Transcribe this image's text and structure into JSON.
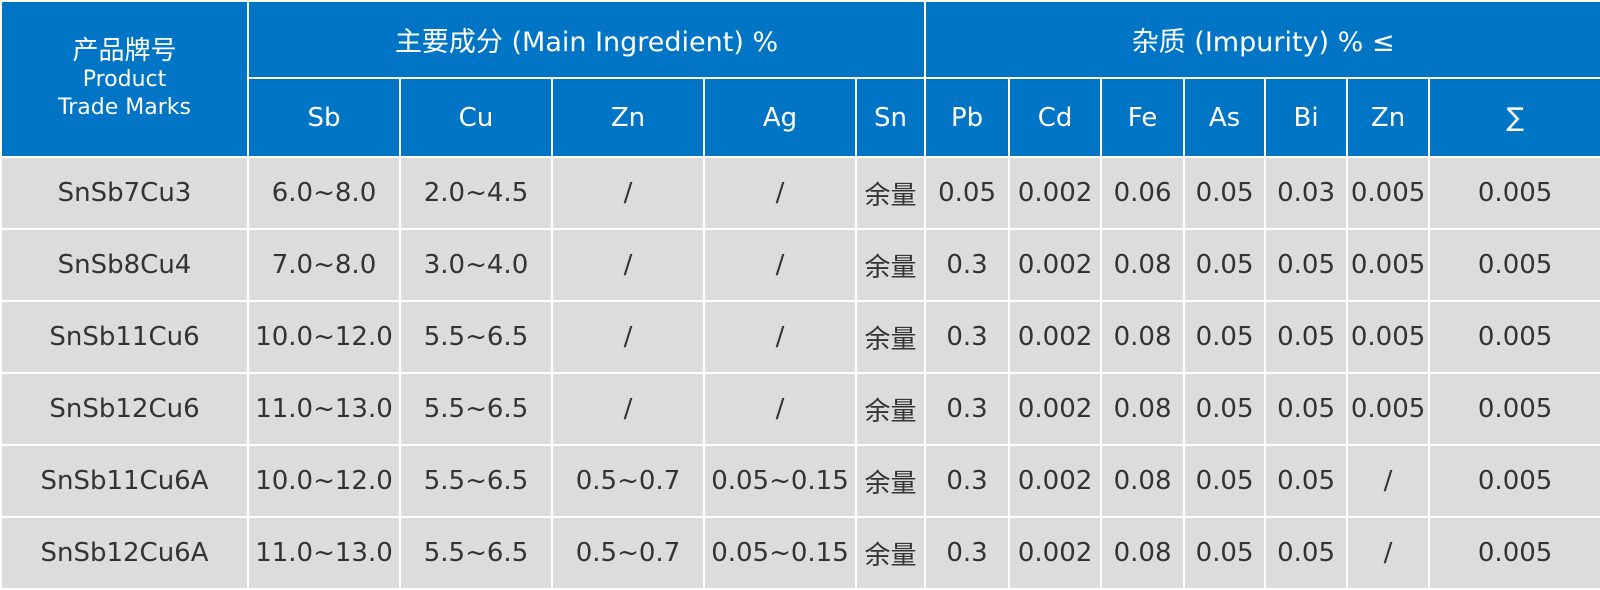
{
  "header": {
    "product_cn": "产品牌号",
    "product_en1": "Product",
    "product_en2": "Trade Marks",
    "main_group": "主要成分 (Main Ingredient) %",
    "impurity_group": "杂质 (Impurity) % ≤",
    "main_cols": [
      "Sb",
      "Cu",
      "Zn",
      "Ag",
      "Sn"
    ],
    "impurity_cols": [
      "Pb",
      "Cd",
      "Fe",
      "As",
      "Bi",
      "Zn",
      "∑"
    ]
  },
  "rows": [
    [
      "SnSb7Cu3",
      "6.0~8.0",
      "2.0~4.5",
      "/",
      "/",
      "余量",
      "0.05",
      "0.002",
      "0.06",
      "0.05",
      "0.03",
      "0.005",
      "0.005"
    ],
    [
      "SnSb8Cu4",
      "7.0~8.0",
      "3.0~4.0",
      "/",
      "/",
      "余量",
      "0.3",
      "0.002",
      "0.08",
      "0.05",
      "0.05",
      "0.005",
      "0.005"
    ],
    [
      "SnSb11Cu6",
      "10.0~12.0",
      "5.5~6.5",
      "/",
      "/",
      "余量",
      "0.3",
      "0.002",
      "0.08",
      "0.05",
      "0.05",
      "0.005",
      "0.005"
    ],
    [
      "SnSb12Cu6",
      "11.0~13.0",
      "5.5~6.5",
      "/",
      "/",
      "余量",
      "0.3",
      "0.002",
      "0.08",
      "0.05",
      "0.05",
      "0.005",
      "0.005"
    ],
    [
      "SnSb11Cu6A",
      "10.0~12.0",
      "5.5~6.5",
      "0.5~0.7",
      "0.05~0.15",
      "余量",
      "0.3",
      "0.002",
      "0.08",
      "0.05",
      "0.05",
      "/",
      "0.005"
    ],
    [
      "SnSb12Cu6A",
      "11.0~13.0",
      "5.5~6.5",
      "0.5~0.7",
      "0.05~0.15",
      "余量",
      "0.3",
      "0.002",
      "0.08",
      "0.05",
      "0.05",
      "/",
      "0.005"
    ]
  ],
  "colors": {
    "header_bg": "#0074c5",
    "cell_bg": "#dcdcdc",
    "text": "#333333"
  }
}
